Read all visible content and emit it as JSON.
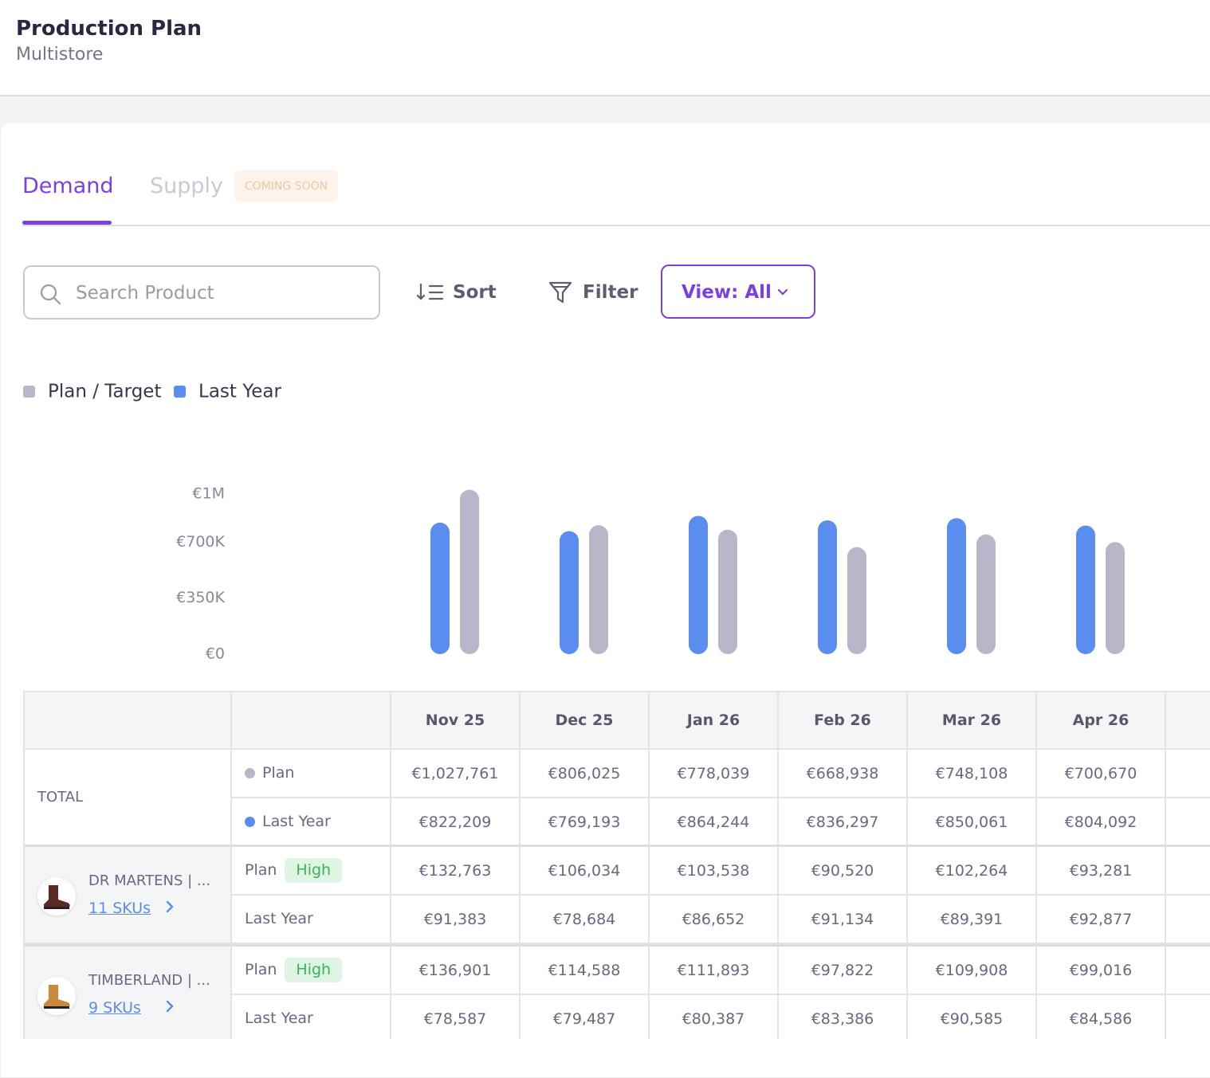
{
  "header": {
    "title": "Production Plan",
    "subtitle": "Multistore"
  },
  "tabs": [
    {
      "label": "Demand"
    },
    {
      "label": "Supply",
      "badge": "COMING SOON"
    }
  ],
  "toolbar": {
    "search_placeholder": "Search Product",
    "sort": "Sort",
    "filter": "Filter",
    "view": "View: All"
  },
  "chart_data": {
    "type": "bar",
    "categories": [
      "Nov 25",
      "Dec 25",
      "Jan 26",
      "Feb 26",
      "Mar 26",
      "Apr 26"
    ],
    "series": [
      {
        "name": "Plan / Target",
        "color": "#b8b6c8",
        "values": [
          1027761,
          806025,
          778039,
          668938,
          748108,
          700670
        ]
      },
      {
        "name": "Last Year",
        "color": "#5b8def",
        "values": [
          822209,
          769193,
          864244,
          836297,
          850061,
          804092
        ]
      }
    ],
    "ylim": [
      0,
      1300000
    ],
    "yticks": [
      {
        "value": 0,
        "label": "€0"
      },
      {
        "value": 350000,
        "label": "€350K"
      },
      {
        "value": 700000,
        "label": "€700K"
      },
      {
        "value": 1000000,
        "label": "€1M"
      }
    ],
    "grid": false
  },
  "table": {
    "total": {
      "label": "TOTAL",
      "rows": [
        {
          "label": "Plan",
          "values": [
            "€1,027,761",
            "€806,025",
            "€778,039",
            "€668,938",
            "€748,108",
            "€700,670"
          ]
        },
        {
          "label": "Last Year",
          "values": [
            "€822,209",
            "€769,193",
            "€864,244",
            "€836,297",
            "€850,061",
            "€804,092"
          ]
        }
      ]
    },
    "products": [
      {
        "name": "DR MARTENS | ...",
        "skus": "11 SKUs",
        "rows": [
          {
            "label": "Plan",
            "badge": "High",
            "values": [
              "€132,763",
              "€106,034",
              "€103,538",
              "€90,520",
              "€102,264",
              "€93,281"
            ]
          },
          {
            "label": "Last Year",
            "values": [
              "€91,383",
              "€78,684",
              "€86,652",
              "€91,134",
              "€89,391",
              "€92,877"
            ]
          }
        ]
      },
      {
        "name": "TIMBERLAND | ...",
        "skus": "9 SKUs",
        "rows": [
          {
            "label": "Plan",
            "badge": "High",
            "values": [
              "€136,901",
              "€114,588",
              "€111,893",
              "€97,822",
              "€109,908",
              "€99,016"
            ]
          },
          {
            "label": "Last Year",
            "values": [
              "€78,587",
              "€79,487",
              "€80,387",
              "€83,386",
              "€90,585",
              "€84,586"
            ]
          }
        ]
      }
    ]
  }
}
